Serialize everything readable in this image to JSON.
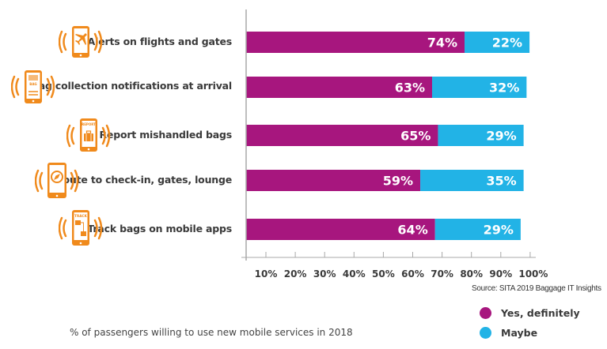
{
  "chart_data": {
    "type": "bar",
    "orientation": "horizontal",
    "stacked": true,
    "categories": [
      "Alerts on flights and gates",
      "Bag collection notifications at arrival",
      "Report mishandled bags",
      "Route to check-in, gates, lounge",
      "Track bags on mobile apps"
    ],
    "category_icons": [
      "phone-airplane-icon",
      "phone-bag-notification-icon",
      "phone-report-bag-icon",
      "phone-compass-icon",
      "phone-track-bag-icon"
    ],
    "series": [
      {
        "name": "Yes, definitely",
        "color": "#a7167e",
        "values": [
          74,
          63,
          65,
          59,
          64
        ],
        "labels": [
          "74%",
          "63%",
          "65%",
          "59%",
          "64%"
        ]
      },
      {
        "name": "Maybe",
        "color": "#22b3e6",
        "values": [
          22,
          32,
          29,
          35,
          29
        ],
        "labels": [
          "22%",
          "32%",
          "29%",
          "35%",
          "29%"
        ]
      }
    ],
    "xticks": [
      "10%",
      "20%",
      "30%",
      "40%",
      "50%",
      "60%",
      "70%",
      "80%",
      "90%",
      "100%"
    ],
    "xlim": [
      0,
      100
    ],
    "grid": false,
    "legend": "bottom-right",
    "source": "Source: SITA 2019 Baggage IT Insights",
    "caption": "% of passengers willing to use new mobile services in 2018"
  },
  "colors": {
    "icon": "#f08a1c",
    "axis": "#9a9a9a"
  },
  "icon_texts": {
    "bag": "BAG",
    "report": "REPORT",
    "track": "TRACK"
  }
}
